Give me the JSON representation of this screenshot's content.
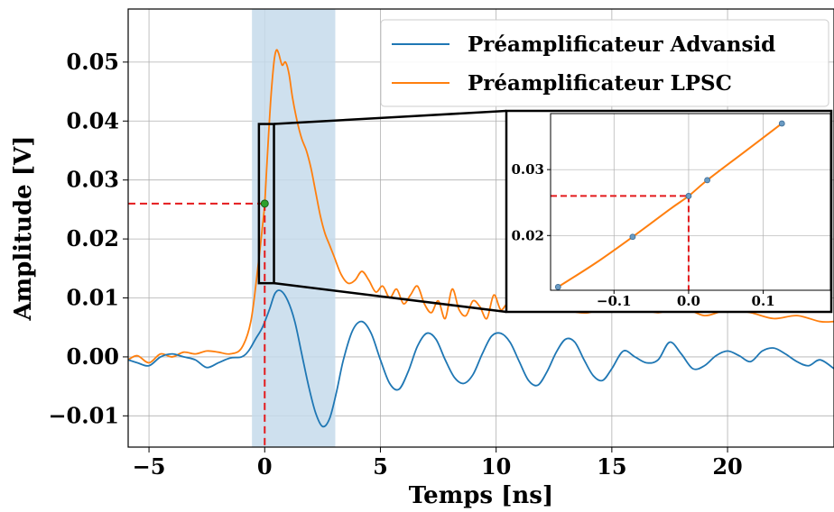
{
  "chart_data": {
    "type": "line",
    "xlabel": "Temps [ns]",
    "ylabel": "Amplitude [V]",
    "xlim": [
      -5.9,
      24.6
    ],
    "ylim": [
      -0.0153,
      0.059
    ],
    "xticks": [
      -5,
      0,
      5,
      10,
      15,
      20
    ],
    "xtick_labels": [
      "−5",
      "0",
      "5",
      "10",
      "15",
      "20"
    ],
    "yticks": [
      -0.01,
      0.0,
      0.01,
      0.02,
      0.03,
      0.04,
      0.05
    ],
    "ytick_labels": [
      "−0.01",
      "0.00",
      "0.01",
      "0.02",
      "0.03",
      "0.04",
      "0.05"
    ],
    "grid": true,
    "legend_position": "top-right",
    "colors": {
      "advansid": "#1f77b4",
      "lpsc": "#ff7f0e",
      "shade": "#c6daeb",
      "marker_line": "#e41a1c"
    },
    "shaded_region": {
      "x_start": -0.55,
      "x_end": 3.05
    },
    "marker_point": {
      "x": 0.0,
      "y": 0.026
    },
    "zoom_box": {
      "x_start": -0.25,
      "x_end": 0.4,
      "y_start": 0.0125,
      "y_end": 0.0395
    },
    "series": [
      {
        "name": "Préamplificateur Advansid",
        "color": "#1f77b4",
        "x": [
          -5.9,
          -5.5,
          -5.0,
          -4.5,
          -4.0,
          -3.5,
          -3.0,
          -2.5,
          -2.0,
          -1.5,
          -1.0,
          -0.7,
          -0.4,
          -0.1,
          0.2,
          0.45,
          0.7,
          1.0,
          1.3,
          1.6,
          1.9,
          2.2,
          2.5,
          2.8,
          3.1,
          3.4,
          3.8,
          4.2,
          4.6,
          5.0,
          5.4,
          5.8,
          6.2,
          6.6,
          7.0,
          7.4,
          7.8,
          8.2,
          8.6,
          9.0,
          9.4,
          9.8,
          10.2,
          10.6,
          11.0,
          11.4,
          11.8,
          12.2,
          12.6,
          13.0,
          13.4,
          13.8,
          14.2,
          14.6,
          15.0,
          15.5,
          16.0,
          16.5,
          17.0,
          17.5,
          18.0,
          18.5,
          19.0,
          19.5,
          20.0,
          20.5,
          21.0,
          21.5,
          22.0,
          22.5,
          23.0,
          23.5,
          24.0,
          24.6
        ],
        "y": [
          -0.0005,
          -0.001,
          -0.0015,
          0.0,
          0.0005,
          0.0,
          -0.0005,
          -0.0018,
          -0.001,
          -0.0002,
          0.0,
          0.001,
          0.003,
          0.005,
          0.008,
          0.0108,
          0.0112,
          0.0095,
          0.006,
          0.0005,
          -0.005,
          -0.0095,
          -0.0118,
          -0.0105,
          -0.006,
          -0.0005,
          0.0045,
          0.006,
          0.004,
          -0.0005,
          -0.0045,
          -0.0055,
          -0.0025,
          0.0018,
          0.004,
          0.003,
          -0.0005,
          -0.0035,
          -0.0045,
          -0.003,
          0.0005,
          0.0035,
          0.004,
          0.0025,
          -0.0008,
          -0.004,
          -0.0048,
          -0.0025,
          0.0008,
          0.003,
          0.0025,
          -0.0005,
          -0.0032,
          -0.004,
          -0.002,
          0.001,
          0.0,
          -0.001,
          -0.0005,
          0.0025,
          0.0005,
          -0.002,
          -0.0015,
          0.0002,
          0.001,
          0.0002,
          -0.0008,
          0.001,
          0.0015,
          0.0005,
          -0.0008,
          -0.0015,
          -0.0005,
          -0.002
        ]
      },
      {
        "name": "Préamplificateur LPSC",
        "color": "#ff7f0e",
        "x": [
          -5.9,
          -5.5,
          -5.0,
          -4.5,
          -4.0,
          -3.5,
          -3.0,
          -2.5,
          -2.0,
          -1.5,
          -1.0,
          -0.6,
          -0.3,
          -0.1,
          0.0,
          0.1,
          0.25,
          0.4,
          0.5,
          0.6,
          0.75,
          0.9,
          1.05,
          1.2,
          1.4,
          1.6,
          1.8,
          2.0,
          2.2,
          2.4,
          2.6,
          2.8,
          3.0,
          3.3,
          3.6,
          3.9,
          4.2,
          4.5,
          4.8,
          5.1,
          5.4,
          5.7,
          6.0,
          6.3,
          6.6,
          6.9,
          7.2,
          7.5,
          7.8,
          8.1,
          8.4,
          8.7,
          9.0,
          9.3,
          9.6,
          9.9,
          10.2,
          10.5,
          11.0,
          12.0,
          13.0,
          14.0,
          15.0,
          16.0,
          17.0,
          18.0,
          19.0,
          20.0,
          21.0,
          22.0,
          23.0,
          24.0,
          24.6
        ],
        "y": [
          -0.0005,
          0.0002,
          -0.001,
          0.0005,
          0.0,
          0.0008,
          0.0005,
          0.001,
          0.0008,
          0.0005,
          0.0015,
          0.006,
          0.015,
          0.022,
          0.026,
          0.033,
          0.043,
          0.05,
          0.052,
          0.0515,
          0.0495,
          0.05,
          0.048,
          0.044,
          0.04,
          0.037,
          0.035,
          0.032,
          0.028,
          0.024,
          0.021,
          0.019,
          0.017,
          0.014,
          0.0125,
          0.013,
          0.0145,
          0.013,
          0.011,
          0.012,
          0.01,
          0.0115,
          0.009,
          0.0105,
          0.012,
          0.009,
          0.0075,
          0.0095,
          0.0065,
          0.0115,
          0.008,
          0.007,
          0.0095,
          0.0085,
          0.0065,
          0.0105,
          0.008,
          0.009,
          0.0085,
          0.0095,
          0.008,
          0.0075,
          0.009,
          0.0085,
          0.0075,
          0.0085,
          0.007,
          0.008,
          0.0075,
          0.0065,
          0.007,
          0.006,
          0.006
        ]
      }
    ],
    "inset": {
      "xlim": [
        -0.185,
        0.19
      ],
      "ylim": [
        0.0117,
        0.0385
      ],
      "xticks": [
        -0.1,
        0.0,
        0.1
      ],
      "xtick_labels": [
        "−0.1",
        "0.0",
        "0.1"
      ],
      "yticks": [
        0.02,
        0.03
      ],
      "ytick_labels": [
        "0.02",
        "0.03"
      ],
      "points": {
        "x": [
          -0.175,
          -0.075,
          0.025,
          0.125
        ],
        "y": [
          0.0122,
          0.0198,
          0.0284,
          0.037
        ]
      },
      "curve": {
        "x": [
          -0.175,
          -0.125,
          -0.075,
          -0.025,
          0.0,
          0.025,
          0.075,
          0.125
        ],
        "y": [
          0.0122,
          0.0158,
          0.0198,
          0.024,
          0.026,
          0.0284,
          0.0327,
          0.037
        ]
      },
      "marker_point": {
        "x": 0.0,
        "y": 0.026
      }
    }
  }
}
